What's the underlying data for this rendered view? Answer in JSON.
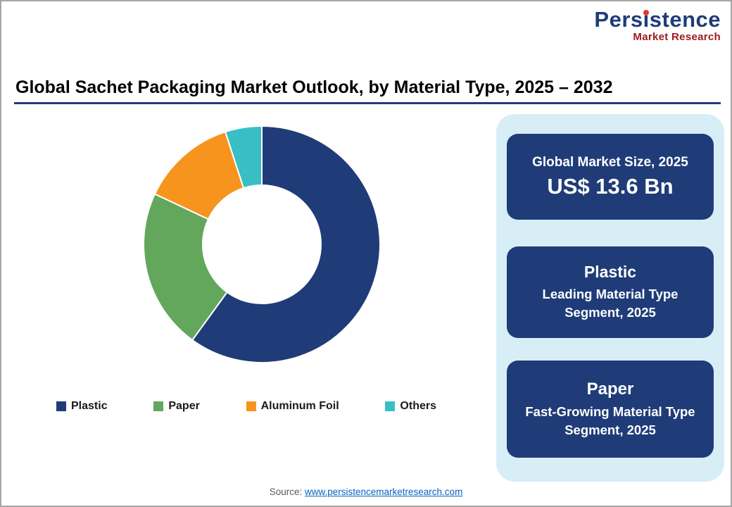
{
  "page": {
    "title": "Global Sachet Packaging Market Outlook, by Material Type, 2025 – 2032"
  },
  "logo": {
    "brand_pre": "Pers",
    "brand_i": "i",
    "brand_post": "stence",
    "tagline": "Market Research",
    "brand_color": "#1F3C78",
    "dot_color": "#E8362D",
    "tagline_color": "#9B1C1F"
  },
  "chart_data": {
    "type": "pie",
    "donut": true,
    "title": "Global Sachet Packaging Market Outlook, by Material Type, 2025 – 2032",
    "categories": [
      "Plastic",
      "Paper",
      "Aluminum Foil",
      "Others"
    ],
    "values": [
      60,
      22,
      13,
      5
    ],
    "unit": "% share (estimated from segment angles)",
    "colors": [
      "#1F3C78",
      "#63A75D",
      "#F6941E",
      "#39BEC5"
    ],
    "start_angle": 0,
    "inner_radius_ratio": 0.5,
    "legend_position": "bottom"
  },
  "sidebar": {
    "background": "#D7EEF7",
    "card_color": "#1F3C78",
    "cards": [
      {
        "line1": "Global Market Size, 2025",
        "line2": "US$ 13.6 Bn"
      },
      {
        "line1": "Plastic",
        "line2": "Leading Material Type Segment, 2025"
      },
      {
        "line1": "Paper",
        "line2": "Fast-Growing Material Type Segment, 2025"
      }
    ]
  },
  "footer": {
    "source_label": "Source:",
    "source_link": "www.persistencemarketresearch.com"
  }
}
